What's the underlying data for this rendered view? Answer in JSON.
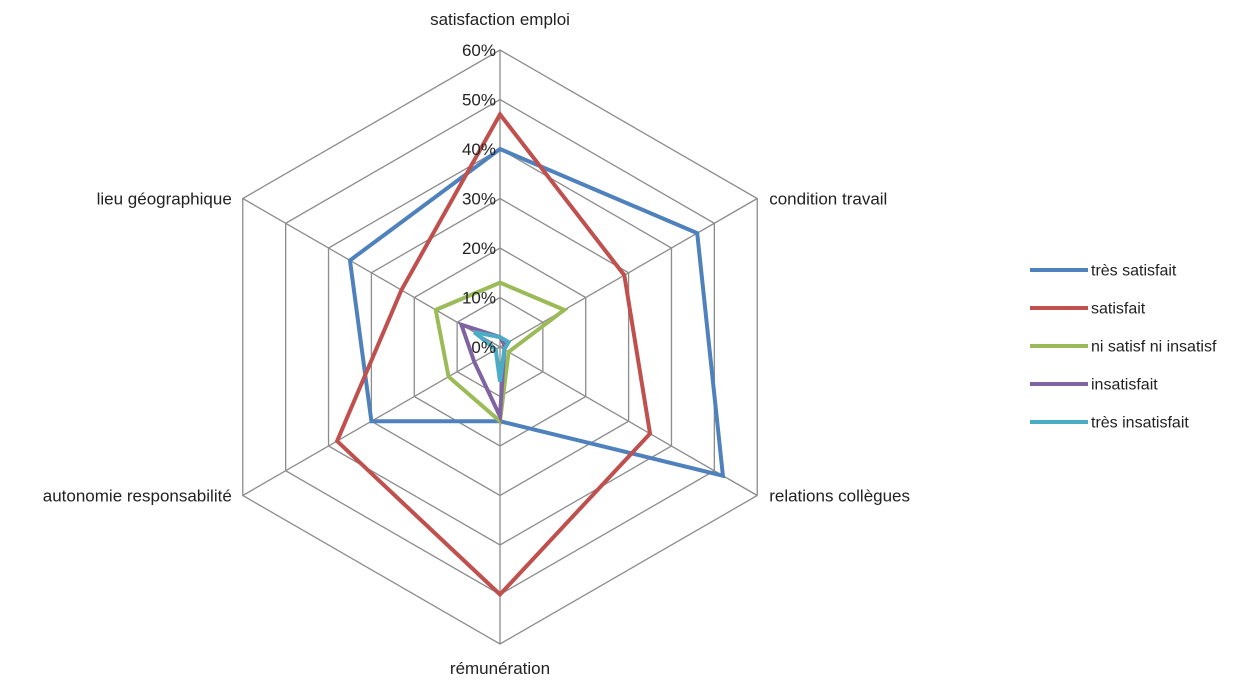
{
  "chart_data": {
    "type": "radar",
    "categories": [
      "satisfaction emploi",
      "condition travail",
      "relations collègues",
      "rémunération",
      "autonomie responsabilité",
      "lieu géographique"
    ],
    "radial_ticks": [
      "0%",
      "10%",
      "20%",
      "30%",
      "40%",
      "50%",
      "60%"
    ],
    "rlim": [
      0,
      60
    ],
    "grid": true,
    "legend_position": "right",
    "series": [
      {
        "name": "très satisfait",
        "color": "#4f81bd",
        "values": [
          40,
          46,
          52,
          15,
          30,
          35
        ]
      },
      {
        "name": "satisfait",
        "color": "#c0504d",
        "values": [
          47,
          29,
          35,
          50,
          38,
          23
        ]
      },
      {
        "name": "ni satisf ni insatisf",
        "color": "#9bbb59",
        "values": [
          13,
          15,
          2,
          15,
          12,
          15
        ]
      },
      {
        "name": "insatisfait",
        "color": "#8064a2",
        "values": [
          2,
          1,
          1,
          14,
          6,
          9
        ]
      },
      {
        "name": "très insatisfait",
        "color": "#4bacc6",
        "values": [
          2,
          2,
          1,
          7,
          1,
          6
        ]
      }
    ]
  }
}
